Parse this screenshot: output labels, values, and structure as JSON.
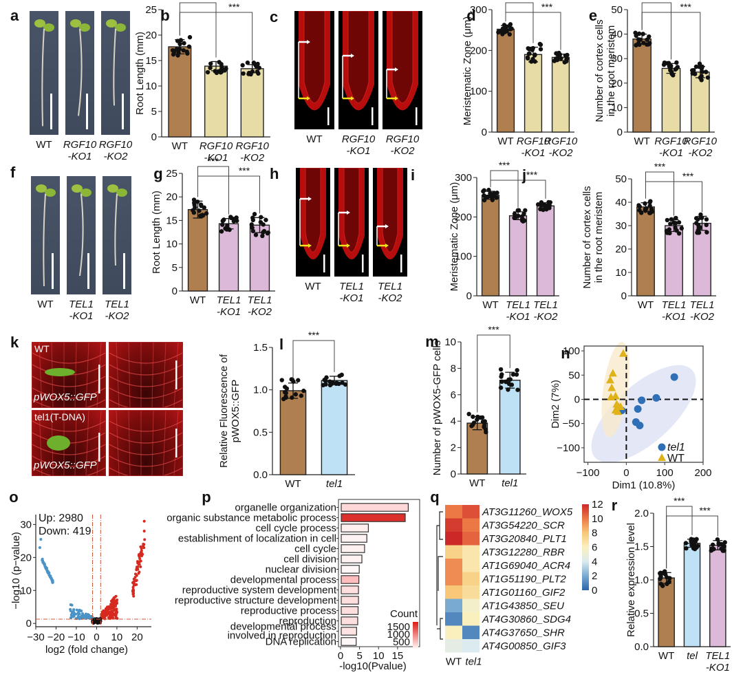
{
  "panels": {
    "a": {
      "letter": "a",
      "labels": [
        "WT",
        "RGF10\n-KO1",
        "RGF10\n-KO2"
      ]
    },
    "c": {
      "letter": "c",
      "labels": [
        "WT",
        "RGF10\n-KO1",
        "RGF10\n-KO2"
      ]
    },
    "f": {
      "letter": "f",
      "labels": [
        "WT",
        "TEL1\n-KO1",
        "TEL1\n-KO2"
      ]
    },
    "h": {
      "letter": "h",
      "labels": [
        "WT",
        "TEL1\n-KO1",
        "TEL1\n-KO2"
      ]
    },
    "k": {
      "letter": "k",
      "top_label": "WT",
      "bottom_label": "tel1(T-DNA)",
      "construct_label": "pWOX5::GFP"
    }
  },
  "colors": {
    "wt_bar": "#b07f4f",
    "rgf_bar": "#e8dca6",
    "tel_bar": "#dcb9d8",
    "tel1_bar": "#bfe1f5",
    "up": "#d62a20",
    "down": "#4a93c7",
    "pca_tel1": "#2f6fb6",
    "pca_wt": "#e0b21a"
  },
  "chart_data": [
    {
      "id": "b",
      "letter": "b",
      "type": "bar",
      "categories": [
        "WT",
        "RGF10\n-KO1",
        "RGF10\n-KO2"
      ],
      "values": [
        17.7,
        13.9,
        13.4
      ],
      "errors": [
        1.4,
        0.9,
        0.8
      ],
      "ylabel": "Root Length (mm)",
      "ylim": [
        0,
        25
      ],
      "yticks": [
        0,
        5,
        10,
        15,
        20,
        25
      ],
      "significance": [
        {
          "from": 0,
          "to": 1,
          "label": "***"
        },
        {
          "from": 0,
          "to": 2,
          "label": "***"
        }
      ],
      "bar_colors": [
        "wt_bar",
        "rgf_bar",
        "rgf_bar"
      ]
    },
    {
      "id": "d",
      "letter": "d",
      "type": "bar",
      "categories": [
        "WT",
        "RGF10\n-KO1",
        "RGF10\n-KO2"
      ],
      "values": [
        252,
        190,
        183
      ],
      "errors": [
        9,
        18,
        8
      ],
      "ylabel": "Meristematic Zone (μm)",
      "ylim": [
        0,
        300
      ],
      "yticks": [
        0,
        100,
        200,
        300
      ],
      "significance": [
        {
          "from": 0,
          "to": 1,
          "label": "***"
        },
        {
          "from": 0,
          "to": 2,
          "label": "***"
        }
      ],
      "bar_colors": [
        "wt_bar",
        "rgf_bar",
        "rgf_bar"
      ]
    },
    {
      "id": "e",
      "letter": "e",
      "type": "bar",
      "categories": [
        "WT",
        "RGF10\n-KO1",
        "RGF10\n-KO2"
      ],
      "values": [
        38,
        26,
        24.5
      ],
      "errors": [
        2,
        2,
        2.3
      ],
      "ylabel": "Number of cortex cells\nin the root meristem",
      "ylim": [
        0,
        50
      ],
      "yticks": [
        0,
        10,
        20,
        30,
        40,
        50
      ],
      "significance": [
        {
          "from": 0,
          "to": 1,
          "label": "***"
        },
        {
          "from": 0,
          "to": 2,
          "label": "***"
        }
      ],
      "bar_colors": [
        "wt_bar",
        "rgf_bar",
        "rgf_bar"
      ]
    },
    {
      "id": "g",
      "letter": "g",
      "type": "bar",
      "categories": [
        "WT",
        "TEL1\n-KO1",
        "TEL1\n-KO2"
      ],
      "values": [
        17.3,
        14.3,
        14.0
      ],
      "errors": [
        1.8,
        1.1,
        1.6
      ],
      "ylabel": "Root Length (mm)",
      "ylim": [
        0,
        25
      ],
      "yticks": [
        0,
        5,
        10,
        15,
        20,
        25
      ],
      "significance": [
        {
          "from": 0,
          "to": 1,
          "label": "***"
        },
        {
          "from": 0,
          "to": 2,
          "label": "***"
        }
      ],
      "bar_colors": [
        "wt_bar",
        "tel_bar",
        "tel_bar"
      ]
    },
    {
      "id": "i",
      "letter": "i",
      "type": "bar",
      "categories": [
        "WT",
        "TEL1\n-KO1",
        "TEL1\n-KO2"
      ],
      "values": [
        255,
        203,
        228
      ],
      "errors": [
        10,
        10,
        8
      ],
      "ylabel": "Meristematic Zone (μm)",
      "ylim": [
        0,
        300
      ],
      "yticks": [
        0,
        100,
        200,
        300
      ],
      "significance": [
        {
          "from": 0,
          "to": 1,
          "label": "***"
        },
        {
          "from": 0,
          "to": 2,
          "label": "***"
        }
      ],
      "bar_colors": [
        "wt_bar",
        "tel_bar",
        "tel_bar"
      ]
    },
    {
      "id": "j",
      "letter": "j",
      "type": "bar",
      "categories": [
        "WT",
        "TEL1\n-KO1",
        "TEL1\n-KO2"
      ],
      "values": [
        38,
        30,
        31
      ],
      "errors": [
        1.8,
        2.5,
        3
      ],
      "ylabel": "Number of cortex cells\nin the root meristem",
      "ylim": [
        0,
        50
      ],
      "yticks": [
        0,
        10,
        20,
        30,
        40,
        50
      ],
      "significance": [
        {
          "from": 0,
          "to": 1,
          "label": "***"
        },
        {
          "from": 0,
          "to": 2,
          "label": "***"
        }
      ],
      "bar_colors": [
        "wt_bar",
        "tel_bar",
        "tel_bar"
      ]
    },
    {
      "id": "l",
      "letter": "l",
      "type": "bar",
      "categories": [
        "WT",
        "tel1"
      ],
      "values": [
        0.99,
        1.11
      ],
      "errors": [
        0.09,
        0.05
      ],
      "ylabel": "Relative Fluorescence of\npWOX5::GFP",
      "ylim": [
        0,
        1.5
      ],
      "yticks": [
        0.0,
        0.5,
        1.0,
        1.5
      ],
      "ytick_labels": [
        "0.0",
        "0.5",
        "1.0",
        "1.5"
      ],
      "significance": [
        {
          "from": 0,
          "to": 1,
          "label": "***"
        }
      ],
      "bar_colors": [
        "wt_bar",
        "tel1_bar"
      ]
    },
    {
      "id": "m",
      "letter": "m",
      "type": "bar",
      "categories": [
        "WT",
        "tel1"
      ],
      "values": [
        3.85,
        7.1
      ],
      "errors": [
        0.5,
        0.6
      ],
      "ylabel": "Number of pWOX5-GFP cells",
      "ylim": [
        0,
        10
      ],
      "yticks": [
        0,
        2,
        4,
        6,
        8,
        10
      ],
      "significance": [
        {
          "from": 0,
          "to": 1,
          "label": "***"
        }
      ],
      "bar_colors": [
        "wt_bar",
        "tel1_bar"
      ]
    },
    {
      "id": "n",
      "letter": "n",
      "type": "scatter",
      "xlabel": "Dim1 (10.8%)",
      "ylabel": "Dim2 (7%)",
      "xlim": [
        -110,
        200
      ],
      "ylim": [
        -130,
        110
      ],
      "xticks": [
        -100,
        0,
        100,
        200
      ],
      "yticks": [
        -100,
        -50,
        0,
        50,
        100
      ],
      "series": [
        {
          "name": "tel1",
          "marker": "circle",
          "points": [
            [
              125,
              46
            ],
            [
              78,
              3
            ],
            [
              40,
              -2
            ],
            [
              30,
              -20
            ],
            [
              25,
              -47
            ],
            [
              35,
              -54
            ],
            [
              -12,
              -23
            ]
          ]
        },
        {
          "name": "WT",
          "marker": "triangle",
          "points": [
            [
              -8,
              95
            ],
            [
              -35,
              54
            ],
            [
              -42,
              40
            ],
            [
              -38,
              24
            ],
            [
              -40,
              5
            ],
            [
              -28,
              7
            ],
            [
              -25,
              -10
            ],
            [
              -20,
              -15
            ],
            [
              -15,
              -15
            ],
            [
              -28,
              -22
            ],
            [
              -22,
              -25
            ]
          ]
        }
      ],
      "legend": [
        "tel1",
        "WT"
      ],
      "legend_position": "bottom-right"
    },
    {
      "id": "o",
      "letter": "o",
      "type": "scatter",
      "xlabel": "log2 (fold change)",
      "ylabel": "−log10 (p−value)",
      "xlim": [
        -30,
        27
      ],
      "ylim": [
        -1,
        33
      ],
      "xticks": [
        -30,
        -20,
        -10,
        0,
        10,
        20
      ],
      "yticks": [
        0,
        10,
        20,
        30
      ],
      "annotations": [
        "Up: 2980",
        "Down: 419"
      ],
      "thresholds": {
        "x": [
          -2,
          2
        ],
        "y": 1.3
      }
    },
    {
      "id": "p",
      "letter": "p",
      "type": "bar",
      "orientation": "horizontal",
      "categories": [
        "organelle organization",
        "organic substance metabolic process",
        "cell cycle process",
        "establishment of localization in cell",
        "cell cycle",
        "cell division",
        "nuclear division",
        "developmental process",
        "reproductive system development",
        "reproductive structure development",
        "reproductive process",
        "reproduction",
        "developmental process\ninvolved in reproduction",
        "DNA replication"
      ],
      "values": [
        18,
        17.2,
        7.5,
        7.1,
        6.5,
        5.8,
        5.1,
        5.0,
        4.9,
        4.9,
        4.8,
        4.7,
        4.4,
        4.3
      ],
      "counts": [
        300,
        1600,
        120,
        100,
        110,
        100,
        60,
        500,
        250,
        250,
        250,
        250,
        220,
        60
      ],
      "xlabel": "-log10(Pvalue)",
      "xlim": [
        0,
        21
      ],
      "xticks": [
        0,
        5,
        10,
        15
      ],
      "legend_title": "Count",
      "legend_ticks": [
        1500,
        1000,
        500
      ]
    },
    {
      "id": "q",
      "letter": "q",
      "type": "heatmap",
      "columns": [
        "WT",
        "tel1"
      ],
      "rows": [
        "AT3G11260_WOX5",
        "AT3G54220_SCR",
        "AT3G20840_PLT1",
        "AT3G12280_RBR",
        "AT1G69040_ACR4",
        "AT1G51190_PLT2",
        "AT1G01160_GIF2",
        "AT1G43850_SEU",
        "AT4G30860_SDG4",
        "AT4G37650_SHR",
        "AT4G00850_GIF3"
      ],
      "values": [
        [
          10,
          11
        ],
        [
          11.5,
          10
        ],
        [
          12,
          10.5
        ],
        [
          7.5,
          6.5
        ],
        [
          9.5,
          6.5
        ],
        [
          9.5,
          7.5
        ],
        [
          8,
          7
        ],
        [
          2,
          5.5
        ],
        [
          1,
          6
        ],
        [
          6,
          1
        ],
        [
          4.5,
          4
        ]
      ],
      "colorbar_ticks": [
        0,
        2,
        4,
        6,
        8,
        10,
        12
      ],
      "vmin": 0,
      "vmax": 12
    },
    {
      "id": "r",
      "letter": "r",
      "type": "bar",
      "categories": [
        "WT",
        "tel",
        "TEL1\n-KO1"
      ],
      "values": [
        1.03,
        1.55,
        1.52
      ],
      "errors": [
        0.08,
        0.06,
        0.07
      ],
      "ylabel": "Relative expression level",
      "ylim": [
        0,
        2.0
      ],
      "yticks": [
        0.0,
        0.5,
        1.0,
        1.5,
        2.0
      ],
      "ytick_labels": [
        "0.0",
        "0.5",
        "1.0",
        "1.5",
        "2.0"
      ],
      "significance": [
        {
          "from": 0,
          "to": 1,
          "label": "***"
        },
        {
          "from": 0,
          "to": 2,
          "label": "***"
        }
      ],
      "bar_colors": [
        "wt_bar",
        "tel1_bar",
        "tel_bar"
      ]
    }
  ]
}
